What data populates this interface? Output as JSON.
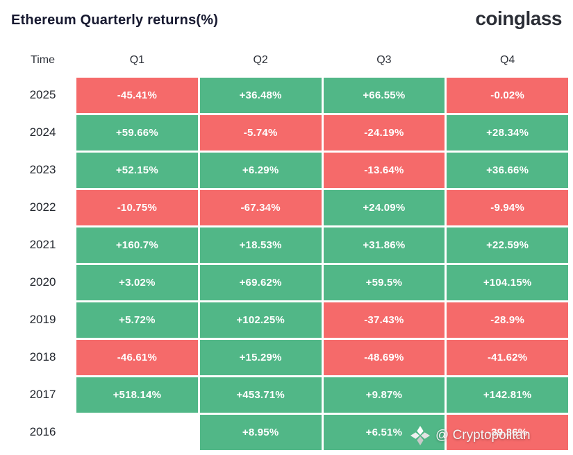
{
  "header": {
    "title": "Ethereum Quarterly returns(%)",
    "logo": "coinglass"
  },
  "table": {
    "columns": [
      "Time",
      "Q1",
      "Q2",
      "Q3",
      "Q4"
    ],
    "rows": [
      {
        "year": "2025",
        "values": [
          "-45.41%",
          "+36.48%",
          "+66.55%",
          "-0.02%"
        ]
      },
      {
        "year": "2024",
        "values": [
          "+59.66%",
          "-5.74%",
          "-24.19%",
          "+28.34%"
        ]
      },
      {
        "year": "2023",
        "values": [
          "+52.15%",
          "+6.29%",
          "-13.64%",
          "+36.66%"
        ]
      },
      {
        "year": "2022",
        "values": [
          "-10.75%",
          "-67.34%",
          "+24.09%",
          "-9.94%"
        ]
      },
      {
        "year": "2021",
        "values": [
          "+160.7%",
          "+18.53%",
          "+31.86%",
          "+22.59%"
        ]
      },
      {
        "year": "2020",
        "values": [
          "+3.02%",
          "+69.62%",
          "+59.5%",
          "+104.15%"
        ]
      },
      {
        "year": "2019",
        "values": [
          "+5.72%",
          "+102.25%",
          "-37.43%",
          "-28.9%"
        ]
      },
      {
        "year": "2018",
        "values": [
          "-46.61%",
          "+15.29%",
          "-48.69%",
          "-41.62%"
        ]
      },
      {
        "year": "2017",
        "values": [
          "+518.14%",
          "+453.71%",
          "+9.87%",
          "+142.81%"
        ]
      },
      {
        "year": "2016",
        "values": [
          null,
          "+8.95%",
          "+6.51%",
          "-39.36%"
        ]
      }
    ]
  },
  "colors": {
    "positive": "#51b787",
    "negative": "#f56a6a"
  },
  "watermark": {
    "text": "@ Cryptopolitan",
    "icon": "cryptopolitan-spark-icon"
  },
  "chart_data": {
    "type": "heatmap",
    "title": "Ethereum Quarterly returns(%)",
    "source_logo": "coinglass",
    "columns": [
      "Q1",
      "Q2",
      "Q3",
      "Q4"
    ],
    "years": [
      "2025",
      "2024",
      "2023",
      "2022",
      "2021",
      "2020",
      "2019",
      "2018",
      "2017",
      "2016"
    ],
    "values_percent": [
      [
        -45.41,
        36.48,
        66.55,
        -0.02
      ],
      [
        59.66,
        -5.74,
        -24.19,
        28.34
      ],
      [
        52.15,
        6.29,
        -13.64,
        36.66
      ],
      [
        -10.75,
        -67.34,
        24.09,
        -9.94
      ],
      [
        160.7,
        18.53,
        31.86,
        22.59
      ],
      [
        3.02,
        69.62,
        59.5,
        104.15
      ],
      [
        5.72,
        102.25,
        -37.43,
        -28.9
      ],
      [
        -46.61,
        15.29,
        -48.69,
        -41.62
      ],
      [
        518.14,
        453.71,
        9.87,
        142.81
      ],
      [
        null,
        8.95,
        6.51,
        -39.36
      ]
    ],
    "color_rule": "green = positive return, red = negative return",
    "note": "2016 Q1 cell empty; 2016 Q4 value partially obscured by watermark"
  }
}
